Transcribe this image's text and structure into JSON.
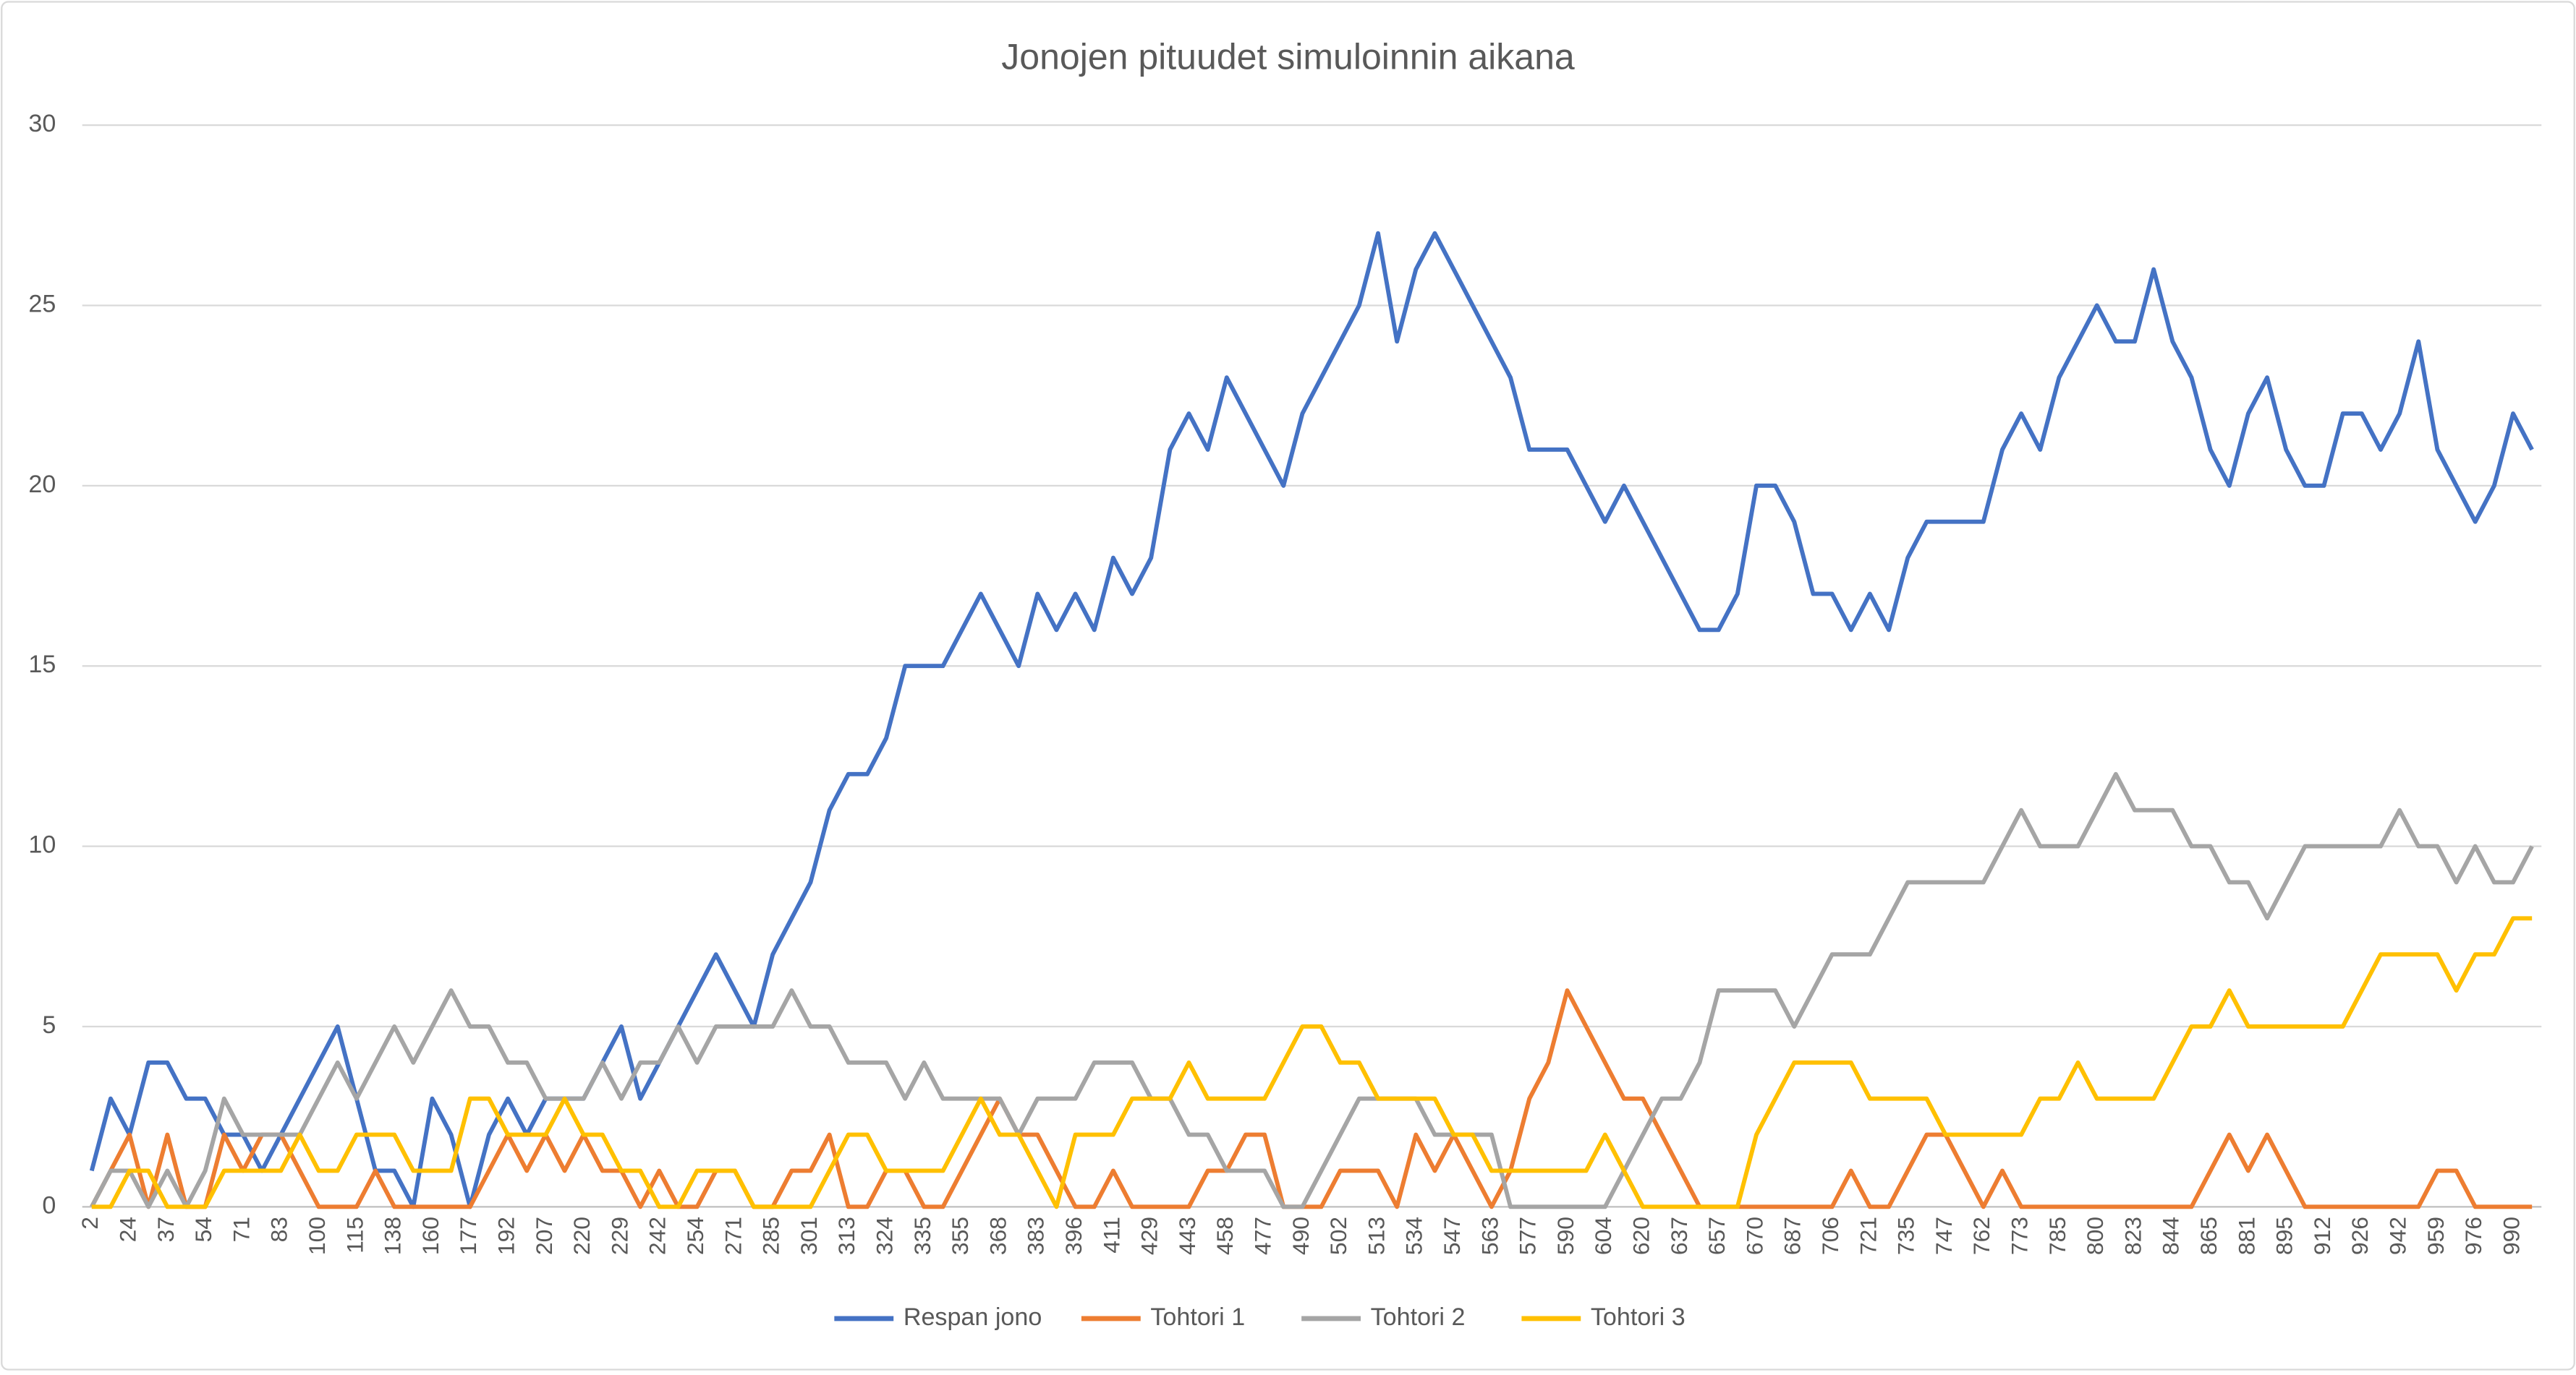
{
  "chart_data": {
    "type": "line",
    "title": "Jonojen pituudet simuloinnin aikana",
    "categories": [
      2,
      null,
      24,
      null,
      37,
      null,
      54,
      null,
      71,
      null,
      83,
      null,
      100,
      null,
      115,
      null,
      138,
      null,
      160,
      null,
      177,
      null,
      192,
      null,
      207,
      null,
      220,
      null,
      229,
      null,
      242,
      null,
      254,
      null,
      271,
      null,
      285,
      null,
      301,
      null,
      313,
      null,
      324,
      null,
      335,
      null,
      355,
      null,
      368,
      null,
      383,
      null,
      396,
      null,
      411,
      null,
      429,
      null,
      443,
      null,
      458,
      null,
      477,
      null,
      490,
      null,
      502,
      null,
      513,
      null,
      534,
      null,
      547,
      null,
      563,
      null,
      577,
      null,
      590,
      null,
      604,
      null,
      620,
      null,
      637,
      null,
      657,
      null,
      670,
      null,
      687,
      null,
      706,
      null,
      721,
      null,
      735,
      null,
      747,
      null,
      762,
      null,
      773,
      null,
      785,
      null,
      800,
      null,
      823,
      null,
      844,
      null,
      865,
      null,
      881,
      null,
      895,
      null,
      912,
      null,
      926,
      null,
      942,
      null,
      959,
      null,
      976,
      null,
      990,
      null
    ],
    "series": [
      {
        "name": "Respan jono",
        "color": "#4472c4",
        "values": [
          1,
          3,
          2,
          4,
          4,
          3,
          3,
          2,
          2,
          1,
          2,
          3,
          4,
          5,
          3,
          1,
          1,
          0,
          3,
          2,
          0,
          2,
          3,
          2,
          3,
          3,
          3,
          4,
          5,
          3,
          4,
          5,
          6,
          7,
          6,
          5,
          7,
          8,
          9,
          11,
          12,
          12,
          13,
          15,
          15,
          15,
          16,
          17,
          16,
          15,
          17,
          16,
          17,
          16,
          18,
          17,
          18,
          21,
          22,
          21,
          23,
          22,
          21,
          20,
          22,
          23,
          24,
          25,
          27,
          24,
          26,
          27,
          26,
          25,
          24,
          23,
          21,
          21,
          21,
          20,
          19,
          20,
          19,
          18,
          17,
          16,
          16,
          17,
          20,
          20,
          19,
          17,
          17,
          16,
          17,
          16,
          18,
          19,
          19,
          19,
          19,
          21,
          22,
          21,
          23,
          24,
          25,
          24,
          24,
          26,
          24,
          23,
          21,
          20,
          22,
          23,
          21,
          20,
          20,
          22,
          22,
          21,
          22,
          24,
          21,
          20,
          19,
          20,
          22,
          21
        ]
      },
      {
        "name": "Tohtori 1",
        "color": "#ed7d31",
        "values": [
          0,
          1,
          2,
          0,
          2,
          0,
          0,
          2,
          1,
          2,
          2,
          1,
          0,
          0,
          0,
          1,
          0,
          0,
          0,
          0,
          0,
          1,
          2,
          1,
          2,
          1,
          2,
          1,
          1,
          0,
          1,
          0,
          0,
          1,
          1,
          0,
          0,
          1,
          1,
          2,
          0,
          0,
          1,
          1,
          0,
          0,
          1,
          2,
          3,
          2,
          2,
          1,
          0,
          0,
          1,
          0,
          0,
          0,
          0,
          1,
          1,
          2,
          2,
          0,
          0,
          0,
          1,
          1,
          1,
          0,
          2,
          1,
          2,
          1,
          0,
          1,
          3,
          4,
          6,
          5,
          4,
          3,
          3,
          2,
          1,
          0,
          0,
          0,
          0,
          0,
          0,
          0,
          0,
          1,
          0,
          0,
          1,
          2,
          2,
          1,
          0,
          1,
          0,
          0,
          0,
          0,
          0,
          0,
          0,
          0,
          0,
          0,
          1,
          2,
          1,
          2,
          1,
          0,
          0,
          0,
          0,
          0,
          0,
          0,
          1,
          1,
          0,
          0,
          0,
          0
        ]
      },
      {
        "name": "Tohtori 2",
        "color": "#a5a5a5",
        "values": [
          0,
          1,
          1,
          0,
          1,
          0,
          1,
          3,
          2,
          2,
          2,
          2,
          3,
          4,
          3,
          4,
          5,
          4,
          5,
          6,
          5,
          5,
          4,
          4,
          3,
          3,
          3,
          4,
          3,
          4,
          4,
          5,
          4,
          5,
          5,
          5,
          5,
          6,
          5,
          5,
          4,
          4,
          4,
          3,
          4,
          3,
          3,
          3,
          3,
          2,
          3,
          3,
          3,
          4,
          4,
          4,
          3,
          3,
          2,
          2,
          1,
          1,
          1,
          0,
          0,
          1,
          2,
          3,
          3,
          3,
          3,
          2,
          2,
          2,
          2,
          0,
          0,
          0,
          0,
          0,
          0,
          1,
          2,
          3,
          3,
          4,
          6,
          6,
          6,
          6,
          5,
          6,
          7,
          7,
          7,
          8,
          9,
          9,
          9,
          9,
          9,
          10,
          11,
          10,
          10,
          10,
          11,
          12,
          11,
          11,
          11,
          10,
          10,
          9,
          9,
          8,
          9,
          10,
          10,
          10,
          10,
          10,
          11,
          10,
          10,
          9,
          10,
          9,
          9,
          10
        ]
      },
      {
        "name": "Tohtori 3",
        "color": "#ffc000",
        "values": [
          0,
          0,
          1,
          1,
          0,
          0,
          0,
          1,
          1,
          1,
          1,
          2,
          1,
          1,
          2,
          2,
          2,
          1,
          1,
          1,
          3,
          3,
          2,
          2,
          2,
          3,
          2,
          2,
          1,
          1,
          0,
          0,
          1,
          1,
          1,
          0,
          0,
          0,
          0,
          1,
          2,
          2,
          1,
          1,
          1,
          1,
          2,
          3,
          2,
          2,
          1,
          0,
          2,
          2,
          2,
          3,
          3,
          3,
          4,
          3,
          3,
          3,
          3,
          4,
          5,
          5,
          4,
          4,
          3,
          3,
          3,
          3,
          2,
          2,
          1,
          1,
          1,
          1,
          1,
          1,
          2,
          1,
          0,
          0,
          0,
          0,
          0,
          0,
          2,
          3,
          4,
          4,
          4,
          4,
          3,
          3,
          3,
          3,
          2,
          2,
          2,
          2,
          2,
          3,
          3,
          4,
          3,
          3,
          3,
          3,
          4,
          5,
          5,
          6,
          5,
          5,
          5,
          5,
          5,
          5,
          6,
          7,
          7,
          7,
          7,
          6,
          7,
          7,
          8,
          8
        ]
      }
    ],
    "ylim": [
      0,
      30
    ],
    "yticks": [
      0,
      5,
      10,
      15,
      20,
      25,
      30
    ],
    "grid": true,
    "legend": "bottom"
  }
}
